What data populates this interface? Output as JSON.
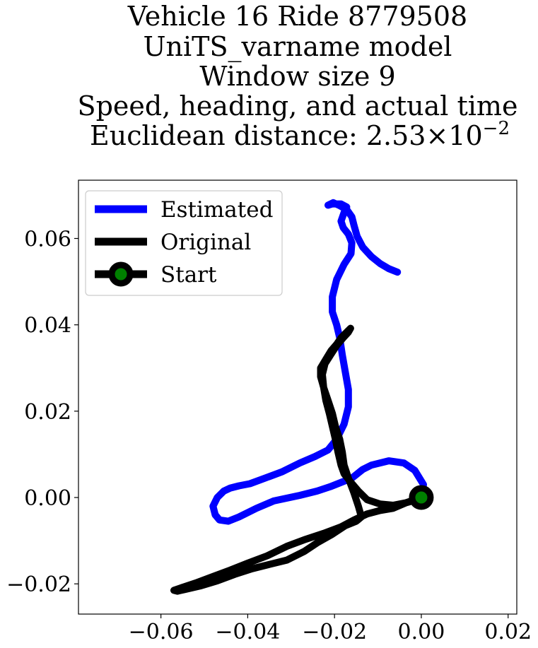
{
  "chart_data": {
    "type": "line",
    "title_lines": [
      "Vehicle 16 Ride 8779508",
      "UniTS_varname model",
      "Window size 9",
      "Speed, heading, and actual time"
    ],
    "title_last_prefix": "Euclidean distance: ",
    "title_last_mantissa": "2.53",
    "title_last_times": "×",
    "title_last_base": "10",
    "title_last_exponent": "−2",
    "xlabel": "",
    "ylabel": "",
    "xlim": [
      -0.079,
      0.022
    ],
    "ylim": [
      -0.027,
      0.0735
    ],
    "xticks": [
      -0.06,
      -0.04,
      -0.02,
      0.0,
      0.02
    ],
    "xtick_labels": [
      "−0.06",
      "−0.04",
      "−0.02",
      "0.00",
      "0.02"
    ],
    "yticks": [
      -0.02,
      0.0,
      0.02,
      0.04,
      0.06
    ],
    "ytick_labels": [
      "−0.02",
      "0.00",
      "0.02",
      "0.04",
      "0.06"
    ],
    "grid": false,
    "legend_position": "upper-left",
    "series": [
      {
        "name": "Estimated",
        "color": "#0000ff",
        "points": [
          [
            0.0,
            0.0
          ],
          [
            0.0005,
            0.003
          ],
          [
            -0.0015,
            0.0063
          ],
          [
            -0.004,
            0.008
          ],
          [
            -0.0075,
            0.0085
          ],
          [
            -0.0115,
            0.0075
          ],
          [
            -0.0135,
            0.0065
          ],
          [
            -0.016,
            0.0045
          ],
          [
            -0.0185,
            0.0035
          ],
          [
            -0.021,
            0.0025
          ],
          [
            -0.024,
            0.0015
          ],
          [
            -0.028,
            0.0005
          ],
          [
            -0.034,
            -0.0008
          ],
          [
            -0.038,
            -0.0025
          ],
          [
            -0.042,
            -0.0045
          ],
          [
            -0.0445,
            -0.0055
          ],
          [
            -0.0465,
            -0.0052
          ],
          [
            -0.0475,
            -0.004
          ],
          [
            -0.048,
            -0.002
          ],
          [
            -0.047,
            0.0
          ],
          [
            -0.0455,
            0.0015
          ],
          [
            -0.044,
            0.0022
          ],
          [
            -0.042,
            0.0027
          ],
          [
            -0.0395,
            0.0032
          ],
          [
            -0.036,
            0.0045
          ],
          [
            -0.032,
            0.006
          ],
          [
            -0.028,
            0.008
          ],
          [
            -0.0245,
            0.0095
          ],
          [
            -0.0215,
            0.011
          ],
          [
            -0.0195,
            0.0135
          ],
          [
            -0.0178,
            0.017
          ],
          [
            -0.0168,
            0.021
          ],
          [
            -0.0168,
            0.025
          ],
          [
            -0.0175,
            0.029
          ],
          [
            -0.0182,
            0.033
          ],
          [
            -0.0188,
            0.037
          ],
          [
            -0.0195,
            0.04
          ],
          [
            -0.0205,
            0.043
          ],
          [
            -0.0205,
            0.0465
          ],
          [
            -0.0195,
            0.0505
          ],
          [
            -0.0178,
            0.054
          ],
          [
            -0.0162,
            0.0565
          ],
          [
            -0.016,
            0.059
          ],
          [
            -0.0168,
            0.061
          ],
          [
            -0.018,
            0.0625
          ],
          [
            -0.0185,
            0.064
          ],
          [
            -0.0178,
            0.066
          ],
          [
            -0.0172,
            0.0673
          ],
          [
            -0.0185,
            0.068
          ],
          [
            -0.0205,
            0.068
          ],
          [
            -0.0215,
            0.0677
          ],
          [
            -0.0203,
            0.0683
          ],
          [
            -0.019,
            0.0677
          ],
          [
            -0.0172,
            0.0667
          ],
          [
            -0.016,
            0.065
          ],
          [
            -0.0155,
            0.063
          ],
          [
            -0.0148,
            0.0605
          ],
          [
            -0.0135,
            0.058
          ],
          [
            -0.0115,
            0.0558
          ],
          [
            -0.0095,
            0.0542
          ],
          [
            -0.0075,
            0.053
          ],
          [
            -0.0055,
            0.0522
          ]
        ]
      },
      {
        "name": "Original",
        "color": "#000000",
        "points": [
          [
            0.0,
            0.0
          ],
          [
            -0.0035,
            -0.0012
          ],
          [
            -0.0065,
            -0.0025
          ],
          [
            -0.0095,
            -0.003
          ],
          [
            -0.0125,
            -0.0038
          ],
          [
            -0.0155,
            -0.0052
          ],
          [
            -0.0185,
            -0.0068
          ],
          [
            -0.0225,
            -0.0083
          ],
          [
            -0.027,
            -0.0098
          ],
          [
            -0.031,
            -0.0113
          ],
          [
            -0.0355,
            -0.0135
          ],
          [
            -0.04,
            -0.0152
          ],
          [
            -0.044,
            -0.0168
          ],
          [
            -0.048,
            -0.0183
          ],
          [
            -0.052,
            -0.0198
          ],
          [
            -0.055,
            -0.0208
          ],
          [
            -0.057,
            -0.0215
          ],
          [
            -0.0562,
            -0.0217
          ],
          [
            -0.0545,
            -0.0213
          ],
          [
            -0.051,
            -0.0205
          ],
          [
            -0.047,
            -0.0193
          ],
          [
            -0.043,
            -0.0178
          ],
          [
            -0.039,
            -0.0165
          ],
          [
            -0.035,
            -0.0155
          ],
          [
            -0.031,
            -0.0145
          ],
          [
            -0.027,
            -0.0125
          ],
          [
            -0.024,
            -0.0105
          ],
          [
            -0.0205,
            -0.0085
          ],
          [
            -0.0175,
            -0.0065
          ],
          [
            -0.015,
            -0.0055
          ],
          [
            -0.0138,
            -0.0045
          ],
          [
            -0.0145,
            -0.002
          ],
          [
            -0.0155,
            0.001
          ],
          [
            -0.0168,
            0.0045
          ],
          [
            -0.0178,
            0.0075
          ],
          [
            -0.0182,
            0.0105
          ],
          [
            -0.0188,
            0.0135
          ],
          [
            -0.0198,
            0.0165
          ],
          [
            -0.0205,
            0.0195
          ],
          [
            -0.0215,
            0.0225
          ],
          [
            -0.0225,
            0.0255
          ],
          [
            -0.0228,
            0.0285
          ],
          [
            -0.0222,
            0.031
          ],
          [
            -0.0208,
            0.0332
          ],
          [
            -0.0195,
            0.0352
          ],
          [
            -0.018,
            0.037
          ],
          [
            -0.0168,
            0.0383
          ],
          [
            -0.0163,
            0.0392
          ],
          [
            -0.017,
            0.0385
          ],
          [
            -0.0185,
            0.037
          ],
          [
            -0.0195,
            0.0355
          ],
          [
            -0.0208,
            0.034
          ],
          [
            -0.022,
            0.032
          ],
          [
            -0.0232,
            0.03
          ],
          [
            -0.0232,
            0.028
          ],
          [
            -0.0225,
            0.0255
          ],
          [
            -0.022,
            0.0225
          ],
          [
            -0.0212,
            0.0195
          ],
          [
            -0.0205,
            0.0165
          ],
          [
            -0.0198,
            0.0135
          ],
          [
            -0.0192,
            0.0105
          ],
          [
            -0.0185,
            0.0075
          ],
          [
            -0.0178,
            0.0055
          ],
          [
            -0.0162,
            0.0035
          ],
          [
            -0.0145,
            0.0015
          ],
          [
            -0.0125,
            -0.0005
          ],
          [
            -0.0095,
            -0.0015
          ],
          [
            -0.0065,
            -0.0018
          ],
          [
            -0.0035,
            -0.0012
          ],
          [
            -0.001,
            -0.0005
          ],
          [
            0.0,
            0.0
          ]
        ]
      }
    ],
    "start_marker": {
      "name": "Start",
      "point": [
        0.0,
        0.0
      ],
      "outer_color": "#000000",
      "inner_color": "#008000"
    }
  }
}
